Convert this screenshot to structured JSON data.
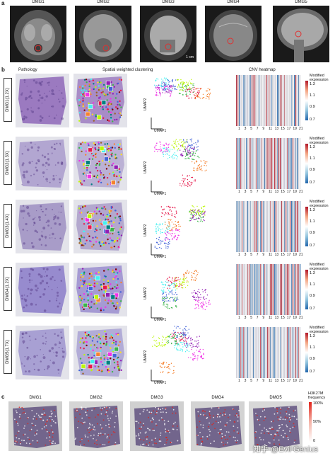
{
  "panel_letters": {
    "a": "a",
    "b": "b",
    "c": "c"
  },
  "mri_labels": [
    "DMG1",
    "DMG2",
    "DMG3",
    "DMG4",
    "DMG5"
  ],
  "mri_scale": "1 cm",
  "column_titles": {
    "pathology": "Pathology",
    "clustering": "Spatial weighted clustering",
    "cnv": "CNV heatmap"
  },
  "samples": [
    {
      "label": "DMG1(1.2X)",
      "tissue_color": "#8e67b8"
    },
    {
      "label": "DMG2(1.3X)",
      "tissue_color": "#a99bcc"
    },
    {
      "label": "DMG3(1.4X)",
      "tissue_color": "#9e8fc2"
    },
    {
      "label": "DMG4(1.2X)",
      "tissue_color": "#8a7bc9"
    },
    {
      "label": "DMG5(1.7X)",
      "tissue_color": "#9d94cf"
    }
  ],
  "umap_x": "UMAP1",
  "umap_y": "UMAP2",
  "cnv_legend": {
    "title": "Modified\nexpression",
    "ticks": [
      "1.3",
      "1.1",
      "0.9",
      "0.7"
    ]
  },
  "chromosome_ticks": [
    "1",
    "3",
    "5",
    "7",
    "9",
    "11",
    "13",
    "15",
    "17",
    "19",
    "21"
  ],
  "spatial_labels": [
    "DMG1",
    "DMG2",
    "DMG3",
    "DMG4",
    "DMG5"
  ],
  "h3k27m_legend": {
    "title": "H3K27M\nfrequency",
    "ticks": [
      "100%",
      "50%",
      "0"
    ]
  },
  "watermark": "知乎 @Evil Genius",
  "colors": {
    "cnv_high": "#b2182b",
    "cnv_low": "#2166ac",
    "h3_high": "#e2231a"
  }
}
